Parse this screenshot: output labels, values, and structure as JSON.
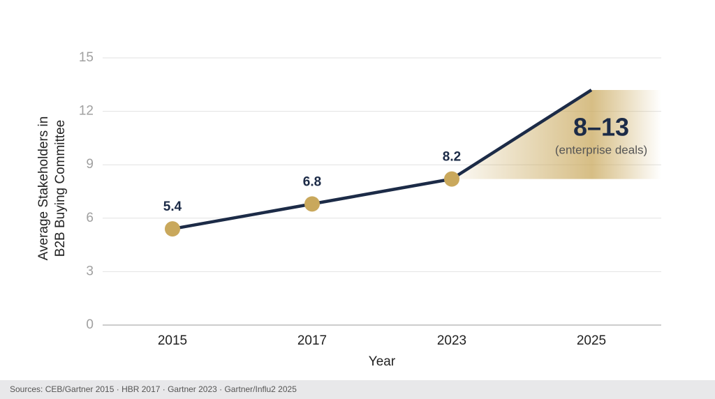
{
  "chart_data": {
    "type": "line",
    "ylabel": [
      "Average Stakeholders in",
      "B2B Buying Committee"
    ],
    "xlabel": "Year",
    "categories": [
      "2015",
      "2017",
      "2023",
      "2025"
    ],
    "series": [
      {
        "color": "#1c2b47",
        "values": [
          5.4,
          6.8,
          8.2,
          13.2
        ],
        "value_labels": [
          "5.4",
          "6.8",
          "8.2",
          null
        ]
      }
    ],
    "marker_color": "#c9a85c",
    "range_band": {
      "color": "#c9a85c",
      "text": "8–13",
      "subtext": "(enterprise deals)"
    },
    "ylim": [
      0,
      15
    ],
    "yticks": [
      0,
      3,
      6,
      9,
      12,
      15
    ],
    "grid": true,
    "source": "Sources: CEB/Gartner 2015 · HBR 2017 · Gartner 2023 · Gartner/Influ2 2025"
  }
}
